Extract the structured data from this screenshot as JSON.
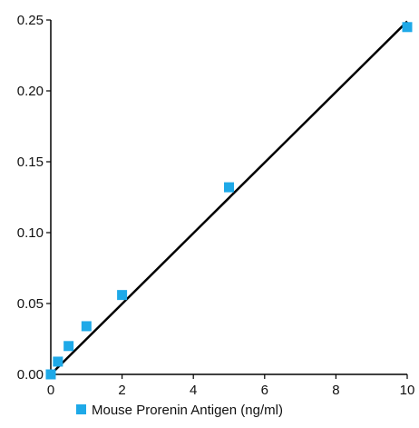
{
  "chart_data": {
    "type": "scatter",
    "title": "",
    "xlabel": "",
    "ylabel": "",
    "xlim": [
      0,
      10
    ],
    "ylim": [
      0,
      0.25
    ],
    "x_ticks": [
      "0",
      "2",
      "4",
      "6",
      "8",
      "10"
    ],
    "y_ticks": [
      "0.00",
      "0.05",
      "0.10",
      "0.15",
      "0.20",
      "0.25"
    ],
    "grid": false,
    "legend_position": "bottom",
    "series": [
      {
        "name": "Mouse Prorenin Antigen (ng/ml)",
        "type": "scatter",
        "color": "#1ea9e8",
        "marker": "square",
        "x": [
          0,
          0.2,
          0.5,
          1,
          2,
          5,
          10
        ],
        "y": [
          0.0,
          0.009,
          0.02,
          0.034,
          0.056,
          0.132,
          0.245
        ]
      }
    ],
    "trendline": {
      "type": "linear",
      "color": "#000000",
      "x": [
        0,
        10
      ],
      "y": [
        0.0,
        0.249
      ]
    }
  }
}
